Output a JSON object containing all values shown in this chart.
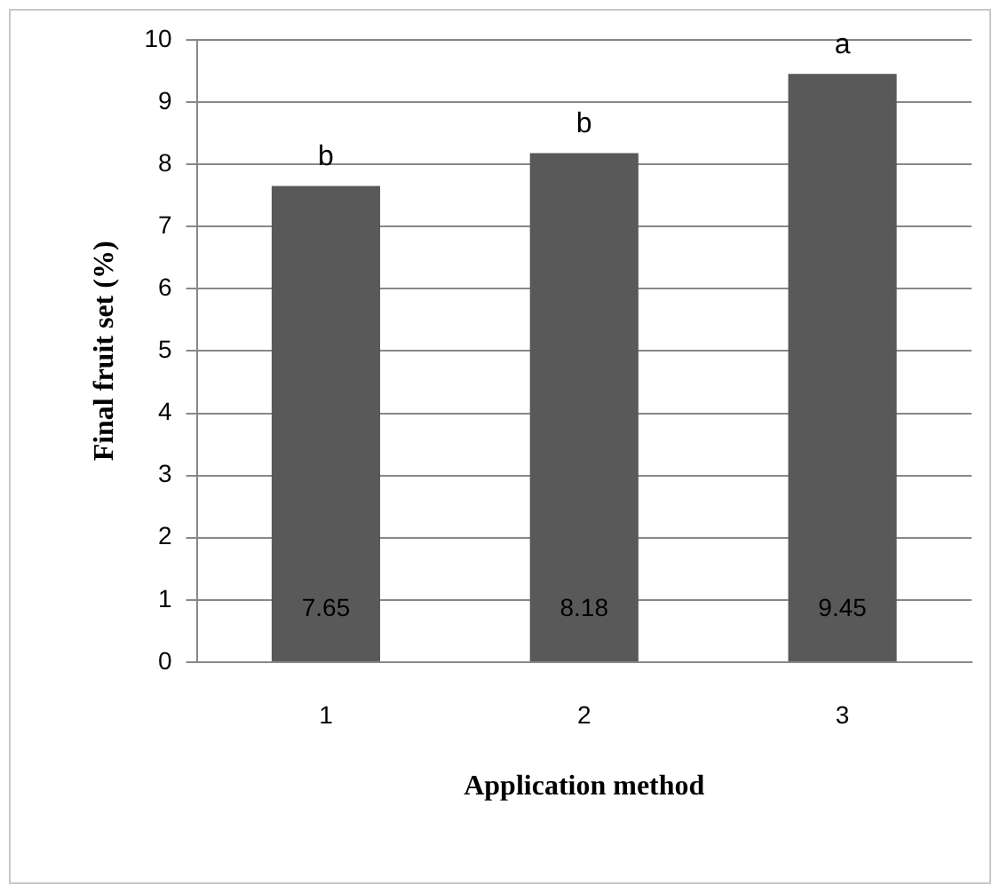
{
  "chart_data": {
    "type": "bar",
    "xlabel": "Application method",
    "ylabel": "Final fruit set (%)",
    "categories": [
      "1",
      "2",
      "3"
    ],
    "values": [
      7.65,
      8.18,
      9.45
    ],
    "color": "#595959",
    "ylim": [
      0,
      10
    ],
    "yticks": [
      0,
      1,
      2,
      3,
      4,
      5,
      6,
      7,
      8,
      9,
      10
    ],
    "grid": "y",
    "data_labels": true,
    "annotations": [
      {
        "text": "b",
        "x": "1",
        "y": 7.65
      },
      {
        "text": "b",
        "x": "2",
        "y": 8.18
      },
      {
        "text": "a",
        "x": "3",
        "y": 9.45
      }
    ]
  }
}
